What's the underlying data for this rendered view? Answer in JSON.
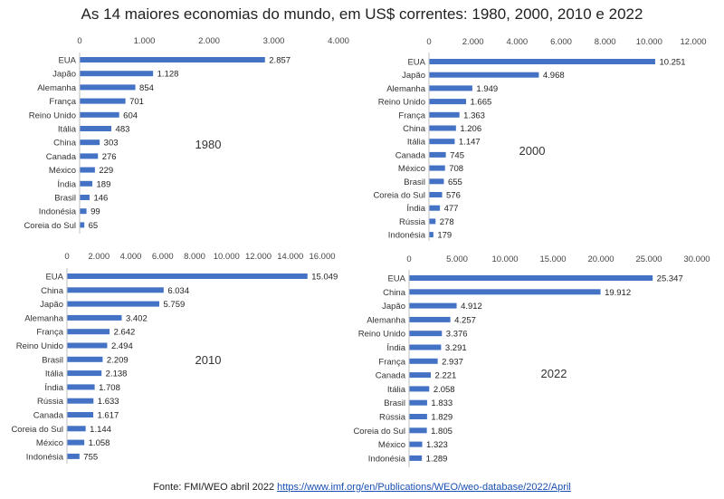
{
  "title": "As 14 maiores economias do mundo, em US$ correntes: 1980, 2000, 2010 e 2022",
  "footer": {
    "label": "Fonte: FMI/WEO abril 2022",
    "link": "https://www.imf.org/en/Publications/WEO/weo-database/2022/April"
  },
  "colors": {
    "bar": "#4472C4",
    "axis": "#bfbfbf"
  },
  "chart_data": [
    {
      "type": "bar",
      "orientation": "horizontal",
      "annotation": "1980",
      "xlim": [
        0,
        4000
      ],
      "xticks": [
        0,
        1000,
        2000,
        3000,
        4000
      ],
      "xtick_labels": [
        "0",
        "1.000",
        "2.000",
        "3.000",
        "4.000"
      ],
      "categories": [
        "EUA",
        "Japão",
        "Alemanha",
        "França",
        "Reino Unido",
        "Itália",
        "China",
        "Canada",
        "México",
        "Índia",
        "Brasil",
        "Indonésia",
        "Coreia do Sul"
      ],
      "values": [
        2857,
        1128,
        854,
        701,
        604,
        483,
        303,
        276,
        229,
        189,
        146,
        99,
        65
      ],
      "value_labels": [
        "2.857",
        "1.128",
        "854",
        "701",
        "604",
        "483",
        "303",
        "276",
        "229",
        "189",
        "146",
        "99",
        "65"
      ]
    },
    {
      "type": "bar",
      "orientation": "horizontal",
      "annotation": "2000",
      "xlim": [
        0,
        12000
      ],
      "xticks": [
        0,
        2000,
        4000,
        6000,
        8000,
        10000,
        12000
      ],
      "xtick_labels": [
        "0",
        "2.000",
        "4.000",
        "6.000",
        "8.000",
        "10.000",
        "12.000"
      ],
      "categories": [
        "EUA",
        "Japão",
        "Alemanha",
        "Reino Unido",
        "França",
        "China",
        "Itália",
        "Canada",
        "México",
        "Brasil",
        "Coreia do Sul",
        "Índia",
        "Rússia",
        "Indonésia"
      ],
      "values": [
        10251,
        4968,
        1949,
        1665,
        1363,
        1206,
        1147,
        745,
        708,
        655,
        576,
        477,
        278,
        179
      ],
      "value_labels": [
        "10.251",
        "4.968",
        "1.949",
        "1.665",
        "1.363",
        "1.206",
        "1.147",
        "745",
        "708",
        "655",
        "576",
        "477",
        "278",
        "179"
      ]
    },
    {
      "type": "bar",
      "orientation": "horizontal",
      "annotation": "2010",
      "xlim": [
        0,
        16000
      ],
      "xticks": [
        0,
        2000,
        4000,
        6000,
        8000,
        10000,
        12000,
        14000,
        16000
      ],
      "xtick_labels": [
        "0",
        "2.000",
        "4.000",
        "6.000",
        "8.000",
        "10.000",
        "12.000",
        "14.000",
        "16.000"
      ],
      "categories": [
        "EUA",
        "China",
        "Japão",
        "Alemanha",
        "França",
        "Reino Unido",
        "Brasil",
        "Itália",
        "Índia",
        "Rússia",
        "Canada",
        "Coreia do Sul",
        "México",
        "Indonésia"
      ],
      "values": [
        15049,
        6034,
        5759,
        3402,
        2642,
        2494,
        2209,
        2138,
        1708,
        1633,
        1617,
        1144,
        1058,
        755
      ],
      "value_labels": [
        "15.049",
        "6.034",
        "5.759",
        "3.402",
        "2.642",
        "2.494",
        "2.209",
        "2.138",
        "1.708",
        "1.633",
        "1.617",
        "1.144",
        "1.058",
        "755"
      ]
    },
    {
      "type": "bar",
      "orientation": "horizontal",
      "annotation": "2022",
      "xlim": [
        0,
        30000
      ],
      "xticks": [
        0,
        5000,
        10000,
        15000,
        20000,
        25000,
        30000
      ],
      "xtick_labels": [
        "0",
        "5.000",
        "10.000",
        "15.000",
        "20.000",
        "25.000",
        "30.000"
      ],
      "categories": [
        "EUA",
        "China",
        "Japão",
        "Alemanha",
        "Reino Unido",
        "Índia",
        "França",
        "Canada",
        "Itália",
        "Brasil",
        "Rússia",
        "Coreia do Sul",
        "México",
        "Indonésia"
      ],
      "values": [
        25347,
        19912,
        4912,
        4257,
        3376,
        3291,
        2937,
        2221,
        2058,
        1833,
        1829,
        1805,
        1323,
        1289
      ],
      "value_labels": [
        "25.347",
        "19.912",
        "4.912",
        "4.257",
        "3.376",
        "3.291",
        "2.937",
        "2.221",
        "2.058",
        "1.833",
        "1.829",
        "1.805",
        "1.323",
        "1.289"
      ]
    }
  ]
}
